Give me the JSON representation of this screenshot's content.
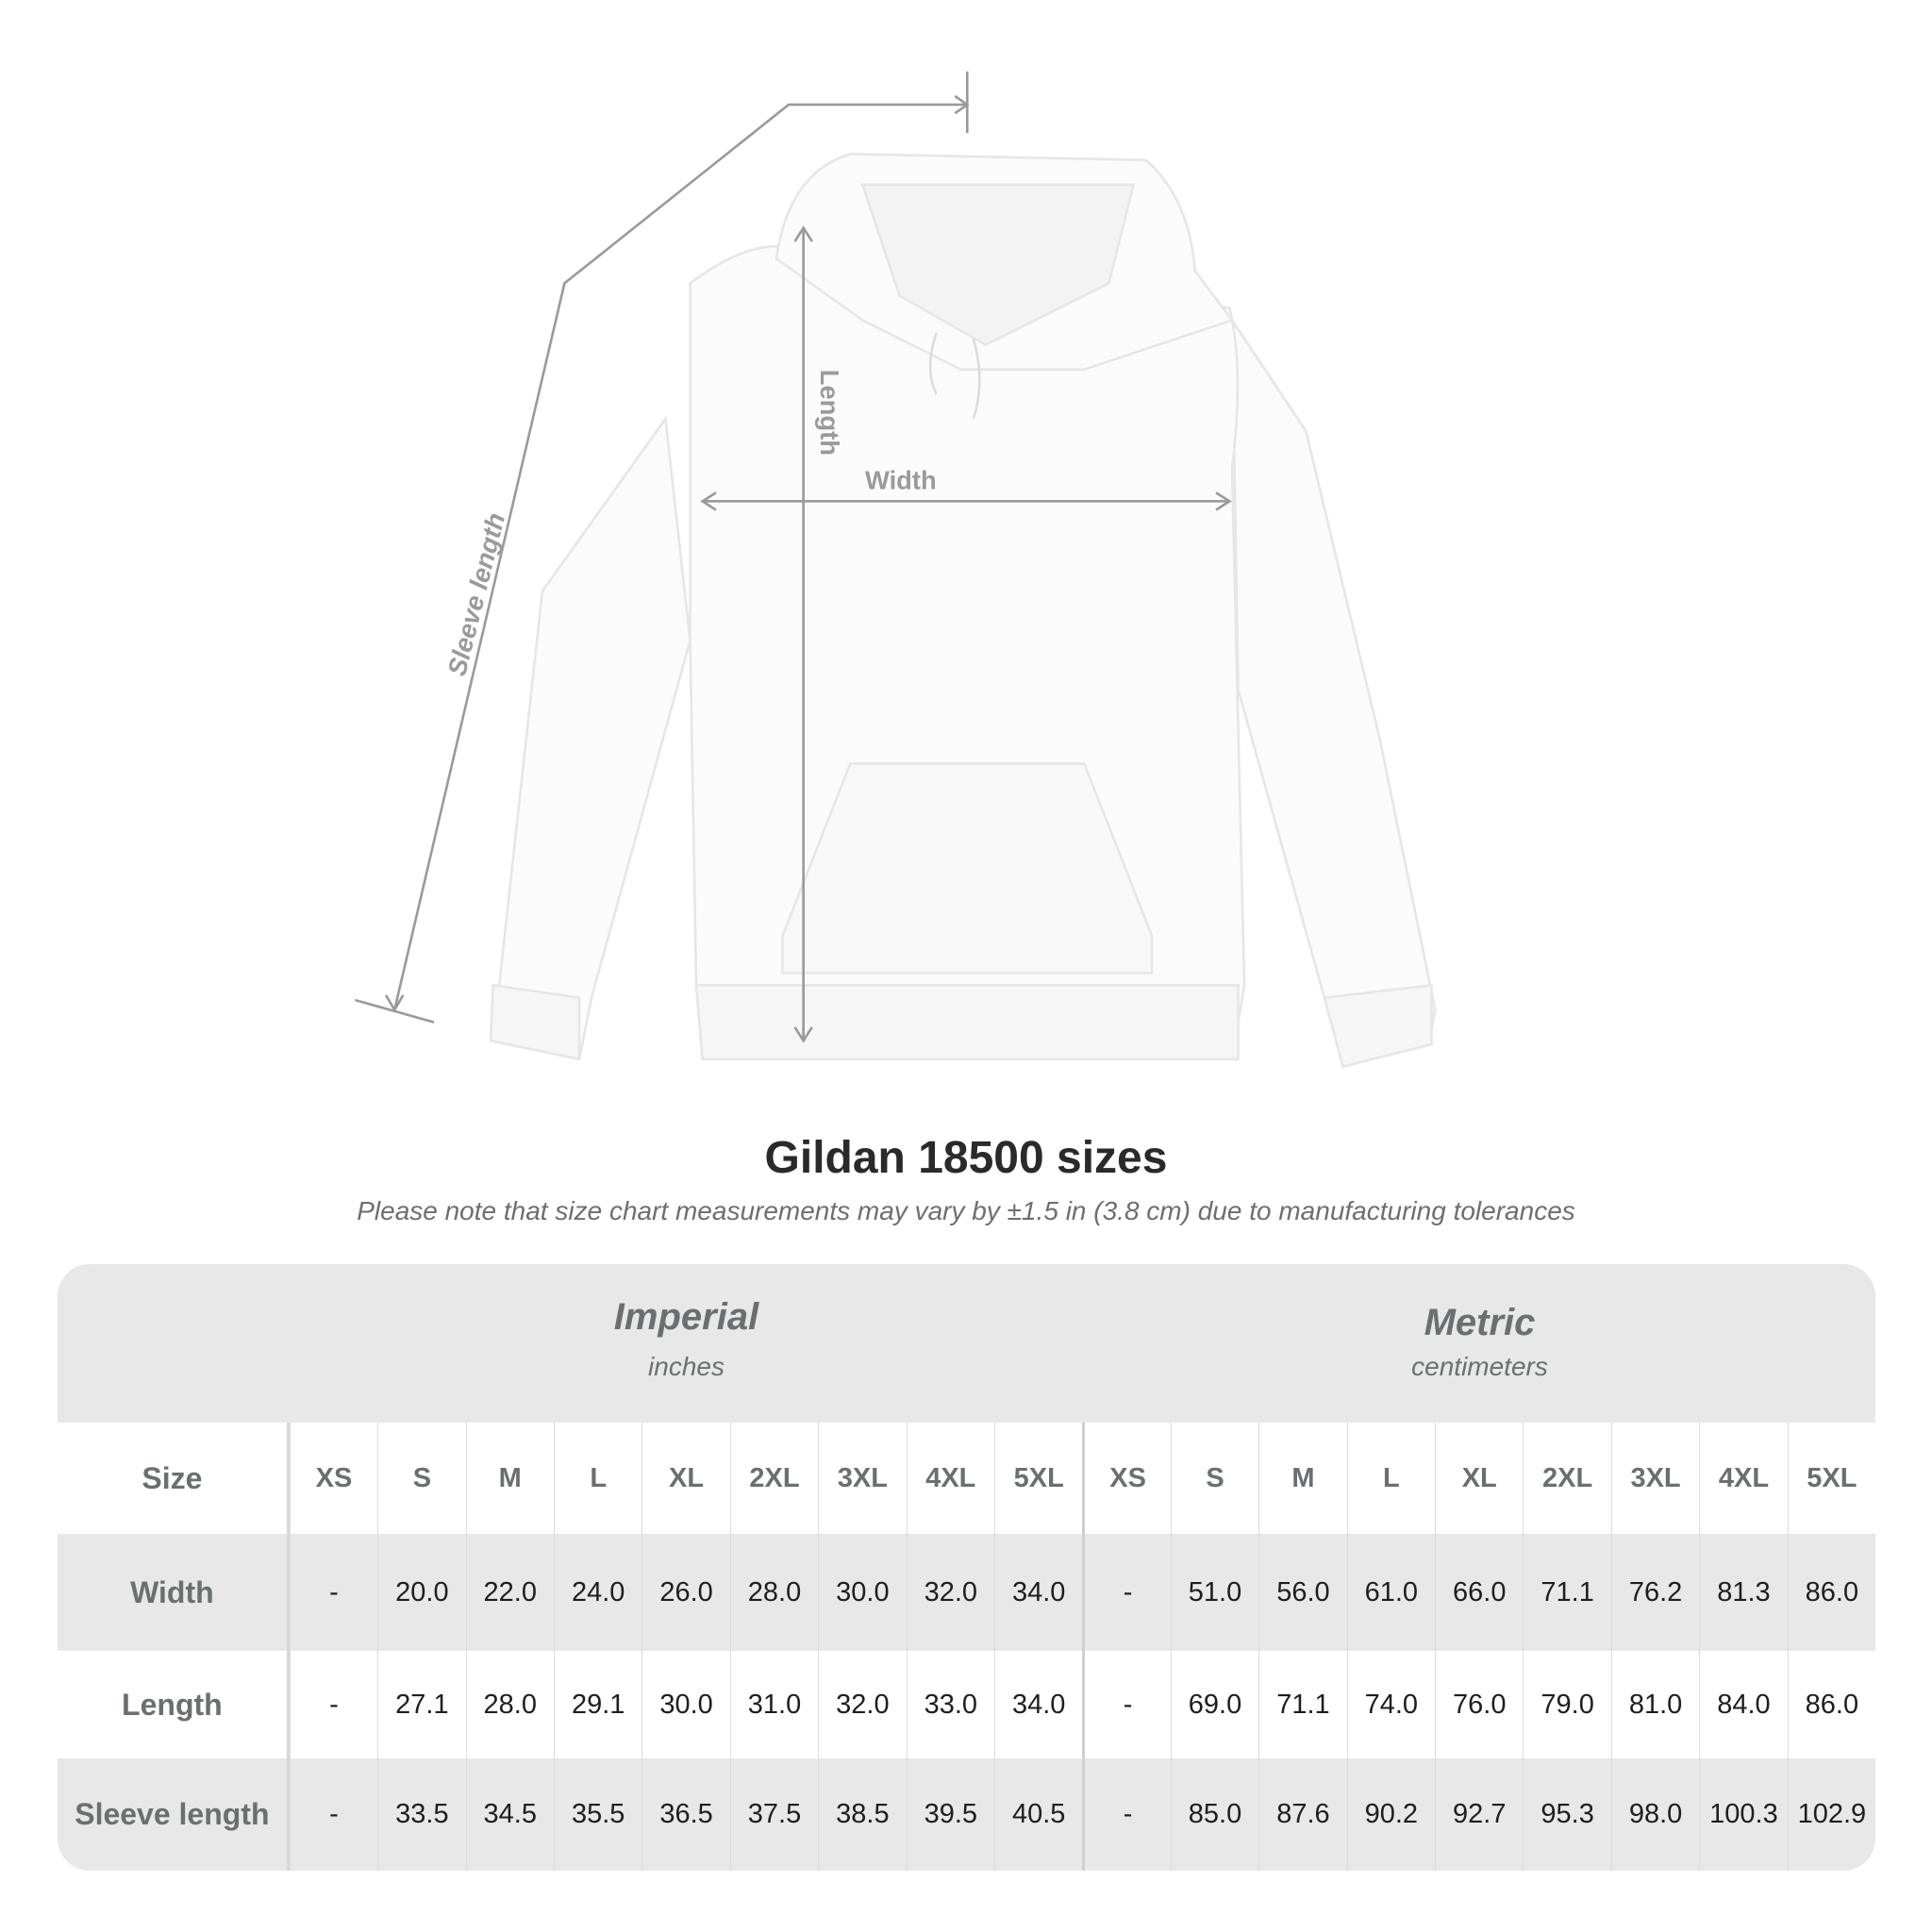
{
  "illustration": {
    "garment": "white hoodie",
    "labels": {
      "sleeve": "Sleeve length",
      "length": "Length",
      "width": "Width"
    },
    "line_color": "#9a9a9a"
  },
  "title": "Gildan 18500 sizes",
  "note": "Please note that size chart measurements may vary by ±1.5 in (3.8 cm) due to manufacturing tolerances",
  "table": {
    "imperial": {
      "name": "Imperial",
      "unit": "inches"
    },
    "metric": {
      "name": "Metric",
      "unit": "centimeters"
    },
    "size_label": "Size",
    "sizes": [
      "XS",
      "S",
      "M",
      "L",
      "XL",
      "2XL",
      "3XL",
      "4XL",
      "5XL"
    ],
    "rows": [
      {
        "label": "Width",
        "imperial": [
          "-",
          "20.0",
          "22.0",
          "24.0",
          "26.0",
          "28.0",
          "30.0",
          "32.0",
          "34.0"
        ],
        "metric": [
          "-",
          "51.0",
          "56.0",
          "61.0",
          "66.0",
          "71.1",
          "76.2",
          "81.3",
          "86.0"
        ]
      },
      {
        "label": "Length",
        "imperial": [
          "-",
          "27.1",
          "28.0",
          "29.1",
          "30.0",
          "31.0",
          "32.0",
          "33.0",
          "34.0"
        ],
        "metric": [
          "-",
          "69.0",
          "71.1",
          "74.0",
          "76.0",
          "79.0",
          "81.0",
          "84.0",
          "86.0"
        ]
      },
      {
        "label": "Sleeve length",
        "imperial": [
          "-",
          "33.5",
          "34.5",
          "35.5",
          "36.5",
          "37.5",
          "38.5",
          "39.5",
          "40.5"
        ],
        "metric": [
          "-",
          "85.0",
          "87.6",
          "90.2",
          "92.7",
          "95.3",
          "98.0",
          "100.3",
          "102.9"
        ]
      }
    ],
    "band_color": "#e8e8e8"
  }
}
